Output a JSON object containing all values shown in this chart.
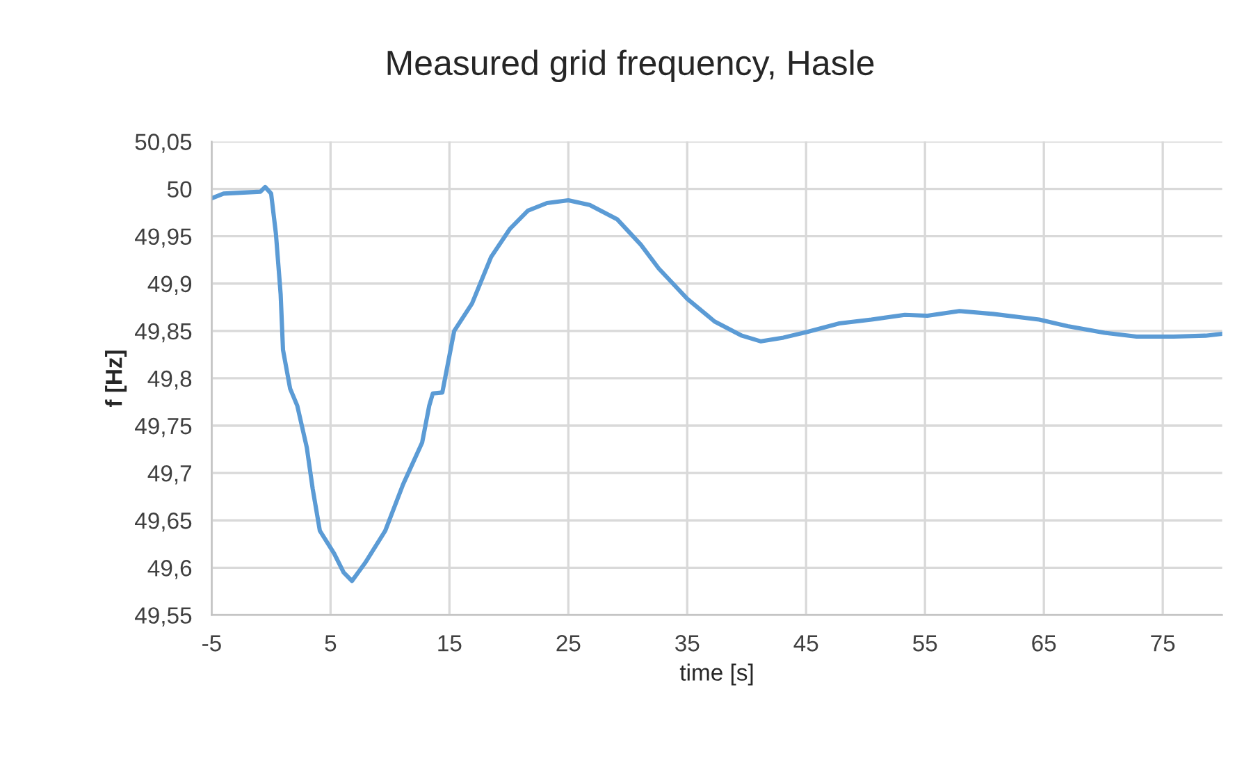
{
  "chart_data": {
    "type": "line",
    "title": "Measured grid frequency, Hasle",
    "xlabel": "time [s]",
    "ylabel": "f [Hz]",
    "x": [
      -5,
      -4.0,
      -0.9,
      -0.5,
      0,
      0.4,
      0.8,
      1.0,
      1.6,
      2.2,
      3.0,
      3.5,
      4.1,
      5.3,
      6.1,
      6.8,
      7.9,
      9.6,
      11.1,
      12.7,
      13.3,
      13.6,
      14.4,
      15.4,
      16.9,
      18.5,
      20.1,
      21.6,
      23.2,
      25,
      26.8,
      29.1,
      31.1,
      32.6,
      35,
      37.3,
      39.6,
      41.2,
      43.1,
      45.1,
      47.8,
      50.5,
      53.3,
      55.2,
      57.9,
      60.7,
      64.6,
      67.0,
      70.1,
      72.8,
      75.9,
      78.6,
      80.0
    ],
    "series": [
      {
        "color": "#5b9bd5",
        "values": [
          49.99,
          49.995,
          49.997,
          50.002,
          49.995,
          49.953,
          49.889,
          49.83,
          49.789,
          49.771,
          49.727,
          49.683,
          49.639,
          49.615,
          49.595,
          49.586,
          49.605,
          49.639,
          49.688,
          49.732,
          49.771,
          49.784,
          49.785,
          49.85,
          49.879,
          49.928,
          49.958,
          49.977,
          49.985,
          49.988,
          49.983,
          49.968,
          49.941,
          49.916,
          49.884,
          49.86,
          49.845,
          49.839,
          49.843,
          49.849,
          49.858,
          49.862,
          49.867,
          49.866,
          49.871,
          49.868,
          49.862,
          49.855,
          49.848,
          49.844,
          49.844,
          49.845,
          49.847
        ]
      }
    ],
    "xlim": [
      -5,
      80
    ],
    "xticks": [
      -5,
      5,
      15,
      25,
      35,
      45,
      55,
      65,
      75
    ],
    "ylim": [
      49.55,
      50.05
    ],
    "yticks": [
      {
        "value": 49.55,
        "label": "49,55"
      },
      {
        "value": 49.6,
        "label": "49,6"
      },
      {
        "value": 49.65,
        "label": "49,65"
      },
      {
        "value": 49.7,
        "label": "49,7"
      },
      {
        "value": 49.75,
        "label": "49,75"
      },
      {
        "value": 49.8,
        "label": "49,8"
      },
      {
        "value": 49.85,
        "label": "49,85"
      },
      {
        "value": 49.9,
        "label": "49,9"
      },
      {
        "value": 49.95,
        "label": "49,95"
      },
      {
        "value": 50,
        "label": "50"
      },
      {
        "value": 50.05,
        "label": "50,05"
      }
    ],
    "grid": true,
    "marker": "none",
    "line_style": "solid"
  }
}
